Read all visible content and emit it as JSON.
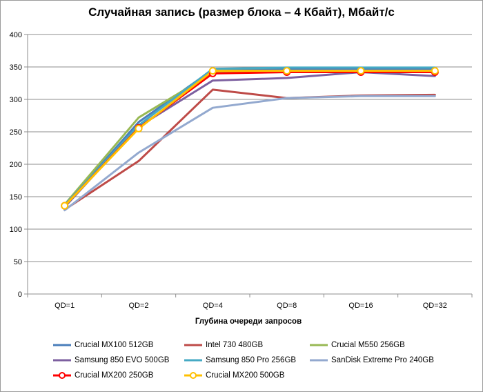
{
  "chart_data": {
    "type": "line",
    "title": "Случайная запись (размер блока – 4 Кбайт), Мбайт/с",
    "xlabel": "Глубина очереди запросов",
    "ylabel": "",
    "categories": [
      "QD=1",
      "QD=2",
      "QD=4",
      "QD=8",
      "QD=16",
      "QD=32"
    ],
    "ylim": [
      0,
      400
    ],
    "yticks": [
      0,
      50,
      100,
      150,
      200,
      250,
      300,
      350,
      400
    ],
    "grid": true,
    "legend_position": "bottom",
    "series": [
      {
        "name": "Crucial MX100 512GB",
        "color": "#4a7ebb",
        "marker": false,
        "values": [
          136,
          265,
          346,
          347,
          347,
          347
        ]
      },
      {
        "name": "Intel 730 480GB",
        "color": "#be4b48",
        "marker": false,
        "values": [
          130,
          205,
          315,
          302,
          306,
          307
        ]
      },
      {
        "name": "Crucial M550 256GB",
        "color": "#98b954",
        "marker": false,
        "values": [
          138,
          272,
          341,
          342,
          342,
          342
        ]
      },
      {
        "name": "Samsung 850 EVO 500GB",
        "color": "#7d60a0",
        "marker": false,
        "values": [
          134,
          258,
          329,
          333,
          342,
          336
        ]
      },
      {
        "name": "Samsung 850 Pro 256GB",
        "color": "#46aac4",
        "marker": false,
        "values": [
          137,
          260,
          347,
          349,
          349,
          349
        ]
      },
      {
        "name": "SanDisk Extreme Pro 240GB",
        "color": "#93a9cf",
        "marker": false,
        "values": [
          129,
          218,
          287,
          302,
          305,
          305
        ]
      },
      {
        "name": "Crucial MX200 250GB",
        "color": "#ff0000",
        "marker": true,
        "values": [
          136,
          256,
          340,
          342,
          342,
          342
        ]
      },
      {
        "name": "Crucial MX200 500GB",
        "color": "#ffc000",
        "marker": true,
        "values": [
          136,
          255,
          344,
          344,
          344,
          344
        ]
      }
    ]
  }
}
